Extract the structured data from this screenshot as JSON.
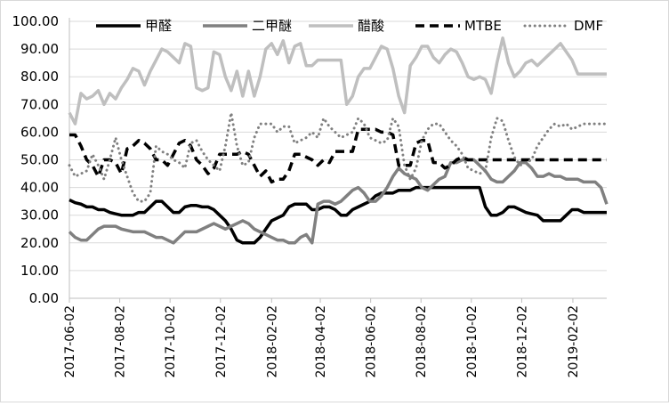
{
  "chart_data": {
    "type": "line",
    "title": "",
    "xlabel": "",
    "ylabel": "",
    "ylim": [
      0,
      100
    ],
    "y_ticks": [
      "0.00",
      "10.00",
      "20.00",
      "30.00",
      "40.00",
      "50.00",
      "60.00",
      "70.00",
      "80.00",
      "90.00",
      "100.00"
    ],
    "x_ticks": [
      "2017-06-02",
      "2017-08-02",
      "2017-10-02",
      "2017-12-02",
      "2018-02-02",
      "2018-04-02",
      "2018-06-02",
      "2018-08-02",
      "2018-10-02",
      "2018-12-02",
      "2019-02-02"
    ],
    "grid": "horizontal",
    "legend_placement": "top",
    "x": [
      "2017-06-02",
      "2017-06-09",
      "2017-06-16",
      "2017-06-23",
      "2017-06-30",
      "2017-07-07",
      "2017-07-14",
      "2017-07-21",
      "2017-07-28",
      "2017-08-04",
      "2017-08-11",
      "2017-08-18",
      "2017-08-25",
      "2017-09-01",
      "2017-09-08",
      "2017-09-15",
      "2017-09-22",
      "2017-09-29",
      "2017-10-06",
      "2017-10-13",
      "2017-10-20",
      "2017-10-27",
      "2017-11-03",
      "2017-11-10",
      "2017-11-17",
      "2017-11-24",
      "2017-12-01",
      "2017-12-08",
      "2017-12-15",
      "2017-12-22",
      "2017-12-29",
      "2018-01-05",
      "2018-01-12",
      "2018-01-19",
      "2018-01-26",
      "2018-02-02",
      "2018-02-09",
      "2018-02-16",
      "2018-02-23",
      "2018-03-02",
      "2018-03-09",
      "2018-03-16",
      "2018-03-23",
      "2018-03-30",
      "2018-04-06",
      "2018-04-13",
      "2018-04-20",
      "2018-04-27",
      "2018-05-04",
      "2018-05-11",
      "2018-05-18",
      "2018-05-25",
      "2018-06-01",
      "2018-06-08",
      "2018-06-15",
      "2018-06-22",
      "2018-06-29",
      "2018-07-06",
      "2018-07-13",
      "2018-07-20",
      "2018-07-27",
      "2018-08-03",
      "2018-08-10",
      "2018-08-17",
      "2018-08-24",
      "2018-08-31",
      "2018-09-07",
      "2018-09-14",
      "2018-09-21",
      "2018-09-28",
      "2018-10-05",
      "2018-10-12",
      "2018-10-19",
      "2018-10-26",
      "2018-11-02",
      "2018-11-09",
      "2018-11-16",
      "2018-11-23",
      "2018-11-30",
      "2018-12-07",
      "2018-12-14",
      "2018-12-21",
      "2018-12-28",
      "2019-01-04",
      "2019-01-11",
      "2019-01-18",
      "2019-01-25",
      "2019-02-01",
      "2019-02-08",
      "2019-02-15",
      "2019-02-22",
      "2019-03-01",
      "2019-03-08",
      "2019-03-15"
    ],
    "series": [
      {
        "name": "甲醛",
        "color": "#000000",
        "style": "solid",
        "values": [
          35.5,
          34.5,
          34,
          33,
          33,
          32,
          32,
          31,
          30.5,
          30,
          30,
          30,
          31,
          31,
          33,
          35,
          35,
          33,
          31,
          31,
          33,
          33.5,
          33.5,
          33,
          33,
          32,
          30,
          28,
          25,
          21,
          20,
          20,
          20,
          22,
          25,
          28,
          29,
          30,
          33,
          34,
          34,
          34,
          32,
          32,
          33,
          33,
          32,
          30,
          30,
          32,
          33,
          34,
          35,
          37,
          38,
          38,
          38,
          39,
          39,
          39,
          40,
          40,
          40,
          40,
          40,
          40,
          40,
          40,
          40,
          40,
          40,
          40,
          33,
          30,
          30,
          31,
          33,
          33,
          32,
          31,
          30.5,
          30,
          28,
          28,
          28,
          28,
          30,
          32,
          32,
          31,
          31,
          31,
          31,
          31
        ]
      },
      {
        "name": "二甲醚",
        "color": "#808080",
        "style": "solid",
        "values": [
          24,
          22,
          21,
          21,
          23,
          25,
          26,
          26,
          26,
          25,
          24.5,
          24,
          24,
          24,
          23,
          22,
          22,
          21,
          20,
          22,
          24,
          24,
          24,
          25,
          26,
          27,
          26,
          25,
          26,
          27,
          28,
          27,
          25,
          24,
          23,
          22,
          21,
          21,
          20,
          20,
          22,
          23,
          20,
          34,
          35,
          35,
          34,
          35,
          37,
          39,
          40,
          38,
          35,
          35,
          37,
          40,
          44,
          47,
          45,
          44,
          43,
          40,
          39,
          41,
          43,
          44,
          49,
          49,
          50,
          50,
          50,
          48,
          46,
          43,
          42,
          42,
          44,
          46,
          49,
          49,
          47,
          44,
          44,
          45,
          44,
          44,
          43,
          43,
          43,
          42,
          42,
          42,
          40,
          34
        ]
      },
      {
        "name": "醋酸",
        "color": "#bfbfbf",
        "style": "solid",
        "values": [
          67,
          63,
          74,
          72,
          73,
          75,
          70,
          74,
          72,
          76,
          79,
          83,
          82,
          77,
          82,
          86,
          90,
          89,
          87,
          85,
          92,
          91,
          76,
          75,
          76,
          89,
          88,
          80,
          75,
          82,
          73,
          82,
          73,
          80,
          90,
          92,
          88,
          93,
          85,
          91,
          92,
          84,
          84,
          86,
          86,
          86,
          86,
          86,
          70,
          73,
          80,
          83,
          83,
          87,
          91,
          90,
          83,
          73,
          67,
          84,
          87,
          91,
          91,
          87,
          85,
          88,
          90,
          89,
          85,
          80,
          79,
          80,
          79,
          74,
          85,
          94,
          85,
          80,
          82,
          85,
          86,
          84,
          86,
          88,
          90,
          92,
          89,
          86,
          81,
          81,
          81,
          81,
          81,
          81
        ]
      },
      {
        "name": "MTBE",
        "color": "#000000",
        "style": "dashed",
        "values": [
          59,
          59,
          55,
          50,
          48,
          44,
          50,
          50,
          49,
          45,
          54,
          55,
          57,
          56,
          54,
          50,
          50,
          48,
          52,
          56,
          57,
          55,
          50,
          48,
          45,
          47,
          52,
          52,
          52,
          52,
          53,
          52,
          48,
          44,
          46,
          42,
          43,
          43,
          46,
          52,
          52,
          51,
          50,
          48,
          50,
          49,
          53,
          53,
          53,
          53,
          61,
          61,
          61,
          61,
          60,
          60,
          59,
          48,
          48,
          48,
          56,
          57,
          57,
          49,
          49,
          47,
          48,
          50,
          51,
          50,
          50,
          50,
          50,
          50,
          50,
          50,
          50,
          50,
          50,
          50,
          50,
          50,
          50,
          50,
          50,
          50,
          50,
          50,
          50,
          50,
          50,
          50,
          50,
          50
        ]
      },
      {
        "name": "DMF",
        "color": "#808080",
        "style": "dotted",
        "values": [
          48,
          44,
          45,
          46,
          52,
          48,
          43,
          50,
          58,
          50,
          44,
          38,
          35,
          35,
          38,
          55,
          53,
          52,
          50,
          49,
          47,
          56,
          57,
          53,
          50,
          48,
          46,
          55,
          67,
          55,
          48,
          49,
          58,
          63,
          63,
          63,
          60,
          62,
          62,
          56,
          57,
          58,
          60,
          58,
          65,
          62,
          60,
          58,
          59,
          60,
          65,
          63,
          58,
          57,
          56,
          57,
          65,
          62,
          48,
          43,
          47,
          57,
          61,
          63,
          63,
          60,
          57,
          55,
          52,
          47,
          46,
          45,
          46,
          58,
          65,
          64,
          57,
          51,
          48,
          49,
          50,
          55,
          58,
          61,
          63,
          62,
          63,
          61,
          62,
          63,
          63,
          63,
          63,
          63
        ]
      }
    ]
  }
}
